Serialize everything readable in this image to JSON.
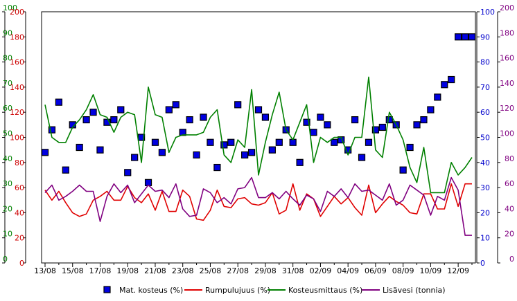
{
  "chart_data": {
    "type": "line",
    "axes": {
      "left_outer": {
        "min": 0,
        "max": 100,
        "ticks": [
          0,
          10,
          20,
          30,
          40,
          50,
          60,
          70,
          80,
          90,
          100
        ],
        "color": "#008000"
      },
      "left_inner": {
        "min": 0,
        "max": 200,
        "ticks": [
          0,
          20,
          40,
          60,
          80,
          100,
          120,
          140,
          160,
          180,
          200
        ],
        "color": "#cc0000"
      },
      "right_inner": {
        "min": 0,
        "max": 100,
        "ticks": [
          0,
          10,
          20,
          30,
          40,
          50,
          60,
          70,
          80,
          90,
          100
        ],
        "color": "#0000cc"
      },
      "right_outer": {
        "min": 0,
        "max": 200,
        "ticks": [
          0,
          20,
          40,
          60,
          80,
          100,
          120,
          140,
          160,
          180,
          200
        ],
        "color": "#800080"
      }
    },
    "x_ticks": [
      "13/08",
      "15/08",
      "17/08",
      "19/08",
      "21/08",
      "23/08",
      "25/08",
      "27/08",
      "29/08",
      "31/08",
      "02/09",
      "04/09",
      "06/09",
      "08/09",
      "10/09",
      "12/09"
    ],
    "x_range": [
      0,
      31
    ],
    "grid": false,
    "legend_position": "bottom",
    "series": [
      {
        "name": "Mat. kosteus (%)",
        "axis": "right_inner",
        "kind": "markers",
        "color": "#0000cc",
        "x": [
          0,
          0.5,
          1,
          1.5,
          2,
          2.5,
          3,
          3.5,
          4,
          4.5,
          5,
          5.5,
          6,
          6.5,
          7,
          7.5,
          8,
          8.5,
          9,
          9.5,
          10,
          10.5,
          11,
          11.5,
          12,
          12.5,
          13,
          13.5,
          14,
          14.5,
          15,
          15.5,
          16,
          16.5,
          17,
          17.5,
          18,
          18.5,
          19,
          19.5,
          20,
          20.5,
          21,
          21.5,
          22,
          22.5,
          23,
          23.5,
          24,
          24.5,
          25,
          25.5,
          26,
          26.5,
          27,
          27.5,
          28,
          28.5,
          29,
          29.5,
          30,
          30.5,
          31
        ],
        "y": [
          44,
          53,
          64,
          37,
          55,
          46,
          57,
          60,
          45,
          56,
          57,
          61,
          36,
          42,
          50,
          32,
          48,
          44,
          61,
          63,
          52,
          57,
          43,
          58,
          48,
          38,
          47,
          48,
          63,
          43,
          44,
          61,
          58,
          45,
          48,
          53,
          48,
          40,
          56,
          52,
          58,
          55,
          48,
          49,
          45,
          57,
          42,
          48,
          53,
          54,
          57,
          55,
          37,
          46,
          55,
          57,
          61,
          66,
          71,
          73,
          90,
          90,
          90
        ]
      },
      {
        "name": "Rumpulujuus (%)",
        "axis": "left_inner",
        "kind": "line",
        "color": "#e00000",
        "x": [
          0,
          0.5,
          1,
          1.5,
          2,
          2.5,
          3,
          3.5,
          4,
          4.5,
          5,
          5.5,
          6,
          6.5,
          7,
          7.5,
          8,
          8.5,
          9,
          9.5,
          10,
          10.5,
          11,
          11.5,
          12,
          12.5,
          13,
          13.5,
          14,
          14.5,
          15,
          15.5,
          16,
          16.5,
          17,
          17.5,
          18,
          18.5,
          19,
          19.5,
          20,
          20.5,
          21,
          21.5,
          22,
          22.5,
          23,
          23.5,
          24,
          24.5,
          25,
          25.5,
          26,
          26.5,
          27,
          27.5,
          28,
          28.5,
          29,
          29.5,
          30,
          30.5,
          31
        ],
        "y": [
          58,
          50,
          57,
          48,
          40,
          37,
          39,
          50,
          53,
          57,
          50,
          50,
          61,
          52,
          48,
          55,
          42,
          57,
          41,
          41,
          58,
          53,
          35,
          34,
          42,
          58,
          45,
          44,
          51,
          52,
          47,
          46,
          48,
          56,
          39,
          42,
          63,
          42,
          55,
          51,
          37,
          45,
          53,
          47,
          52,
          44,
          38,
          62,
          40,
          47,
          53,
          49,
          46,
          40,
          39,
          55,
          55,
          43,
          43,
          63,
          45,
          63,
          63
        ]
      },
      {
        "name": "Kosteusmittaus (%)",
        "axis": "left_outer",
        "kind": "line",
        "color": "#008000",
        "x": [
          0,
          0.5,
          1,
          1.5,
          2,
          2.5,
          3,
          3.5,
          4,
          4.5,
          5,
          5.5,
          6,
          6.5,
          7,
          7.5,
          8,
          8.5,
          9,
          9.5,
          10,
          10.5,
          11,
          11.5,
          12,
          12.5,
          13,
          13.5,
          14,
          14.5,
          15,
          15.5,
          16,
          16.5,
          17,
          17.5,
          18,
          18.5,
          19,
          19.5,
          20,
          20.5,
          21,
          21.5,
          22,
          22.5,
          23,
          23.5,
          24,
          24.5,
          25,
          25.5,
          26,
          26.5,
          27,
          27.5,
          28,
          28.5,
          29,
          29.5,
          30,
          30.5,
          31
        ],
        "y": [
          63,
          50,
          48,
          48,
          54,
          57,
          61,
          67,
          59,
          58,
          52,
          58,
          60,
          59,
          40,
          70,
          59,
          58,
          44,
          50,
          51,
          51,
          51,
          52,
          58,
          61,
          43,
          40,
          49,
          46,
          69,
          35,
          48,
          59,
          68,
          53,
          49,
          56,
          63,
          40,
          50,
          48,
          50,
          50,
          43,
          50,
          50,
          74,
          45,
          42,
          60,
          55,
          49,
          38,
          32,
          46,
          28,
          28,
          28,
          40,
          35,
          38,
          42
        ]
      },
      {
        "name": "Lisävesi (tonnia)",
        "axis": "right_outer",
        "kind": "line",
        "color": "#800080",
        "x": [
          0,
          0.5,
          1,
          1.5,
          2,
          2.5,
          3,
          3.5,
          4,
          4.5,
          5,
          5.5,
          6,
          6.5,
          7,
          7.5,
          8,
          8.5,
          9,
          9.5,
          10,
          10.5,
          11,
          11.5,
          12,
          12.5,
          13,
          13.5,
          14,
          14.5,
          15,
          15.5,
          16,
          16.5,
          17,
          17.5,
          18,
          18.5,
          19,
          19.5,
          20,
          20.5,
          21,
          21.5,
          22,
          22.5,
          23,
          23.5,
          24,
          24.5,
          25,
          25.5,
          26,
          26.5,
          27,
          27.5,
          28,
          28.5,
          29,
          29.5,
          30,
          30.5,
          31
        ],
        "y": [
          56,
          62,
          50,
          53,
          57,
          62,
          57,
          57,
          33,
          53,
          63,
          56,
          62,
          48,
          55,
          62,
          57,
          58,
          52,
          63,
          43,
          37,
          38,
          59,
          56,
          48,
          52,
          47,
          59,
          60,
          68,
          52,
          52,
          56,
          51,
          57,
          51,
          46,
          54,
          51,
          41,
          57,
          53,
          59,
          52,
          63,
          57,
          58,
          54,
          50,
          63,
          46,
          50,
          62,
          58,
          54,
          38,
          53,
          50,
          68,
          58,
          22,
          22
        ]
      }
    ]
  }
}
